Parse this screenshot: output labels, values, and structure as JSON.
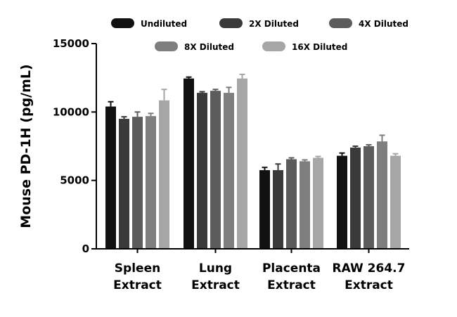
{
  "chart_data": {
    "type": "bar",
    "ylabel": "Mouse PD-1H (pg/mL)",
    "ylim": [
      0,
      15000
    ],
    "yticks": [
      0,
      5000,
      10000,
      15000
    ],
    "categories": [
      [
        "Spleen",
        "Extract"
      ],
      [
        "Lung",
        "Extract"
      ],
      [
        "Placenta",
        "Extract"
      ],
      [
        "RAW 264.7",
        "Extract"
      ]
    ],
    "series": [
      {
        "name": "Undiluted",
        "color": "#111111",
        "values": [
          10400,
          12450,
          5750,
          6800
        ],
        "errors": [
          350,
          100,
          200,
          200
        ]
      },
      {
        "name": "2X Diluted",
        "color": "#3a3a3a",
        "values": [
          9500,
          11400,
          5750,
          7400
        ],
        "errors": [
          150,
          80,
          450,
          100
        ]
      },
      {
        "name": "4X Diluted",
        "color": "#5c5c5c",
        "values": [
          9650,
          11550,
          6550,
          7500
        ],
        "errors": [
          350,
          100,
          100,
          100
        ]
      },
      {
        "name": "8X Diluted",
        "color": "#7e7e7e",
        "values": [
          9700,
          11400,
          6400,
          7850
        ],
        "errors": [
          200,
          400,
          100,
          450
        ]
      },
      {
        "name": "16X Diluted",
        "color": "#a6a6a6",
        "values": [
          10850,
          12450,
          6650,
          6800
        ],
        "errors": [
          800,
          300,
          100,
          150
        ]
      }
    ],
    "legend_position": "top"
  }
}
